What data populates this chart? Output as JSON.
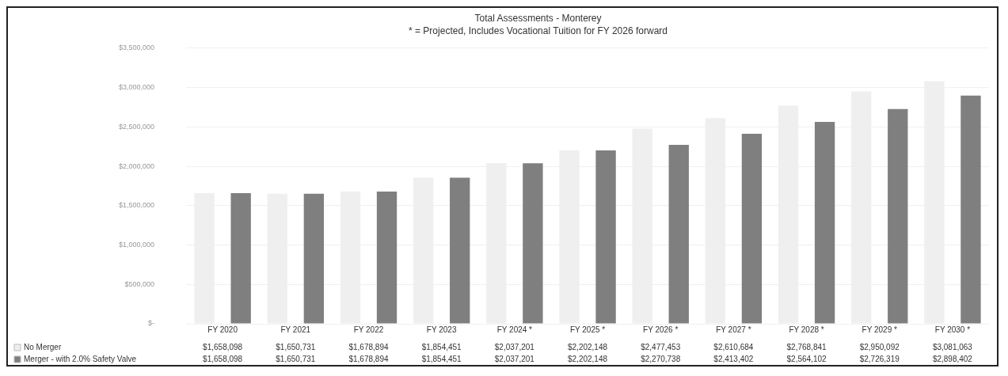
{
  "chart_data": {
    "type": "bar",
    "title": "Total Assessments - Monterey",
    "subtitle": "* = Projected, Includes Vocational Tuition for FY 2026 forward",
    "categories": [
      "FY 2020",
      "FY 2021",
      "FY 2022",
      "FY 2023",
      "FY 2024 *",
      "FY 2025 *",
      "FY 2026 *",
      "FY 2027 *",
      "FY 2028 *",
      "FY 2029 *",
      "FY 2030 *"
    ],
    "series": [
      {
        "name": "No Merger",
        "color": "#efefef",
        "values": [
          1658098,
          1650731,
          1678894,
          1854451,
          2037201,
          2202148,
          2477453,
          2610684,
          2768841,
          2950092,
          3081063
        ],
        "value_labels": [
          "$1,658,098",
          "$1,650,731",
          "$1,678,894",
          "$1,854,451",
          "$2,037,201",
          "$2,202,148",
          "$2,477,453",
          "$2,610,684",
          "$2,768,841",
          "$2,950,092",
          "$3,081,063"
        ]
      },
      {
        "name": "Merger - with 2.0% Safety Valve",
        "color": "#7f7f7f",
        "values": [
          1658098,
          1650731,
          1678894,
          1854451,
          2037201,
          2202148,
          2270738,
          2413402,
          2564102,
          2726319,
          2898402
        ],
        "value_labels": [
          "$1,658,098",
          "$1,650,731",
          "$1,678,894",
          "$1,854,451",
          "$2,037,201",
          "$2,202,148",
          "$2,270,738",
          "$2,413,402",
          "$2,564,102",
          "$2,726,319",
          "$2,898,402"
        ]
      }
    ],
    "ylim": [
      0,
      3500000
    ],
    "yticks": [
      {
        "value": 0,
        "label": "$-"
      },
      {
        "value": 500000,
        "label": "$500,000"
      },
      {
        "value": 1000000,
        "label": "$1,000,000"
      },
      {
        "value": 1500000,
        "label": "$1,500,000"
      },
      {
        "value": 2000000,
        "label": "$2,000,000"
      },
      {
        "value": 2500000,
        "label": "$2,500,000"
      },
      {
        "value": 3000000,
        "label": "$3,000,000"
      },
      {
        "value": 3500000,
        "label": "$3,500,000"
      }
    ],
    "grid": "y",
    "legend": "bottom"
  }
}
